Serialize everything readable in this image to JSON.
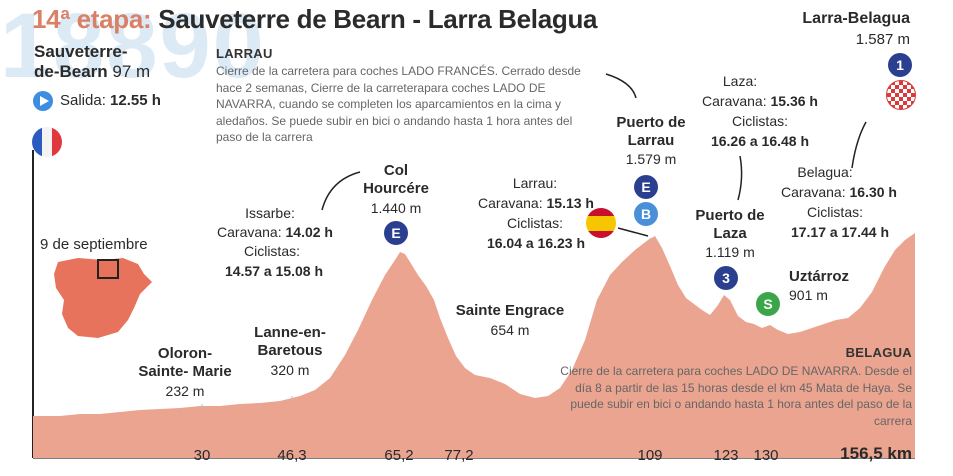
{
  "title": {
    "stage": "14ª etapa:",
    "route": "Sauveterre de Bearn - Larra Belagua"
  },
  "background_number": "18890",
  "start": {
    "name_line1": "Sauveterre-",
    "name_line2": "de-Bearn",
    "altitude": "97 m",
    "departure_label": "Salida:",
    "departure_time": "12.55 h"
  },
  "finish": {
    "name": "Larra-Belagua",
    "altitude": "1.587 m",
    "badge": "1"
  },
  "date": "9 de septiembre",
  "notes": {
    "larrau_title": "LARRAU",
    "larrau_lines": [
      "Cierre de la carretera para coches LADO FRANCÉS. Cerrado desde",
      "hace 2 semanas, Cierre de la carreterapara coches LADO DE",
      "NAVARRA, cuando se completen los aparcamientos en la cima y",
      "aledaños. Se puede subir en bici o andando hasta 1 hora antes del",
      "paso de la carrera"
    ],
    "belagua_title": "BELAGUA",
    "belagua_lines": [
      "Cierre de la carretera para coches LADO DE NAVARRA. Desde el",
      "día 8 a partir de las 15 horas desde el km 45 Mata de Haya. Se",
      "puede subir en bici o andando hasta 1 hora antes del paso de la",
      "carrera"
    ]
  },
  "points": {
    "oloron": {
      "line1": "Oloron-",
      "line2": "Sainte- Marie",
      "altitude": "232 m"
    },
    "lanne": {
      "line1": "Lanne-en-",
      "line2": "Baretous",
      "altitude": "320 m"
    },
    "hourcere": {
      "line1": "Col",
      "line2": "Hourcére",
      "altitude": "1.440 m",
      "badge": "E"
    },
    "engrace": {
      "name": "Sainte Engrace",
      "altitude": "654 m"
    },
    "larrau": {
      "line1": "Puerto de",
      "line2": "Larrau",
      "altitude": "1.579 m",
      "badge1": "E",
      "badge2": "B"
    },
    "laza": {
      "line1": "Puerto de",
      "line2": "Laza",
      "altitude": "1.119 m",
      "badge": "3"
    },
    "uztarroz": {
      "name": "Uztárroz",
      "altitude": "901 m",
      "badge": "S"
    }
  },
  "schedules": {
    "issarbe": {
      "place": "Issarbe:",
      "caravan_label": "Caravana:",
      "caravan_time": "14.02 h",
      "cyclists_label": "Ciclistas:",
      "cyclists_time": "14.57 a 15.08 h"
    },
    "larrau": {
      "place": "Larrau:",
      "caravan_label": "Caravana:",
      "caravan_time": "15.13 h",
      "cyclists_label": "Ciclistas:",
      "cyclists_time": "16.04 a 16.23 h"
    },
    "laza": {
      "place": "Laza:",
      "caravan_label": "Caravana:",
      "caravan_time": "15.36 h",
      "cyclists_label": "Ciclistas:",
      "cyclists_time": "16.26 a 16.48 h"
    },
    "belagua": {
      "place": "Belagua:",
      "caravan_label": "Caravana:",
      "caravan_time": "16.30 h",
      "cyclists_label": "Ciclistas:",
      "cyclists_time": "17.17 a 17.44 h"
    }
  },
  "km_ticks": [
    "30",
    "46,3",
    "65,2",
    "77,2",
    "109",
    "123",
    "130"
  ],
  "km_total": "156,5 km",
  "colors": {
    "profile": "#eaa48f",
    "badge_blue": "#2a3f8f",
    "badge_light_blue": "#4a90d9",
    "badge_green": "#3aa648",
    "accent": "#d98067"
  },
  "icons": [
    "play-icon",
    "france-flag-icon",
    "spain-flag-icon",
    "spain-map-icon",
    "checkered-flag-icon"
  ]
}
